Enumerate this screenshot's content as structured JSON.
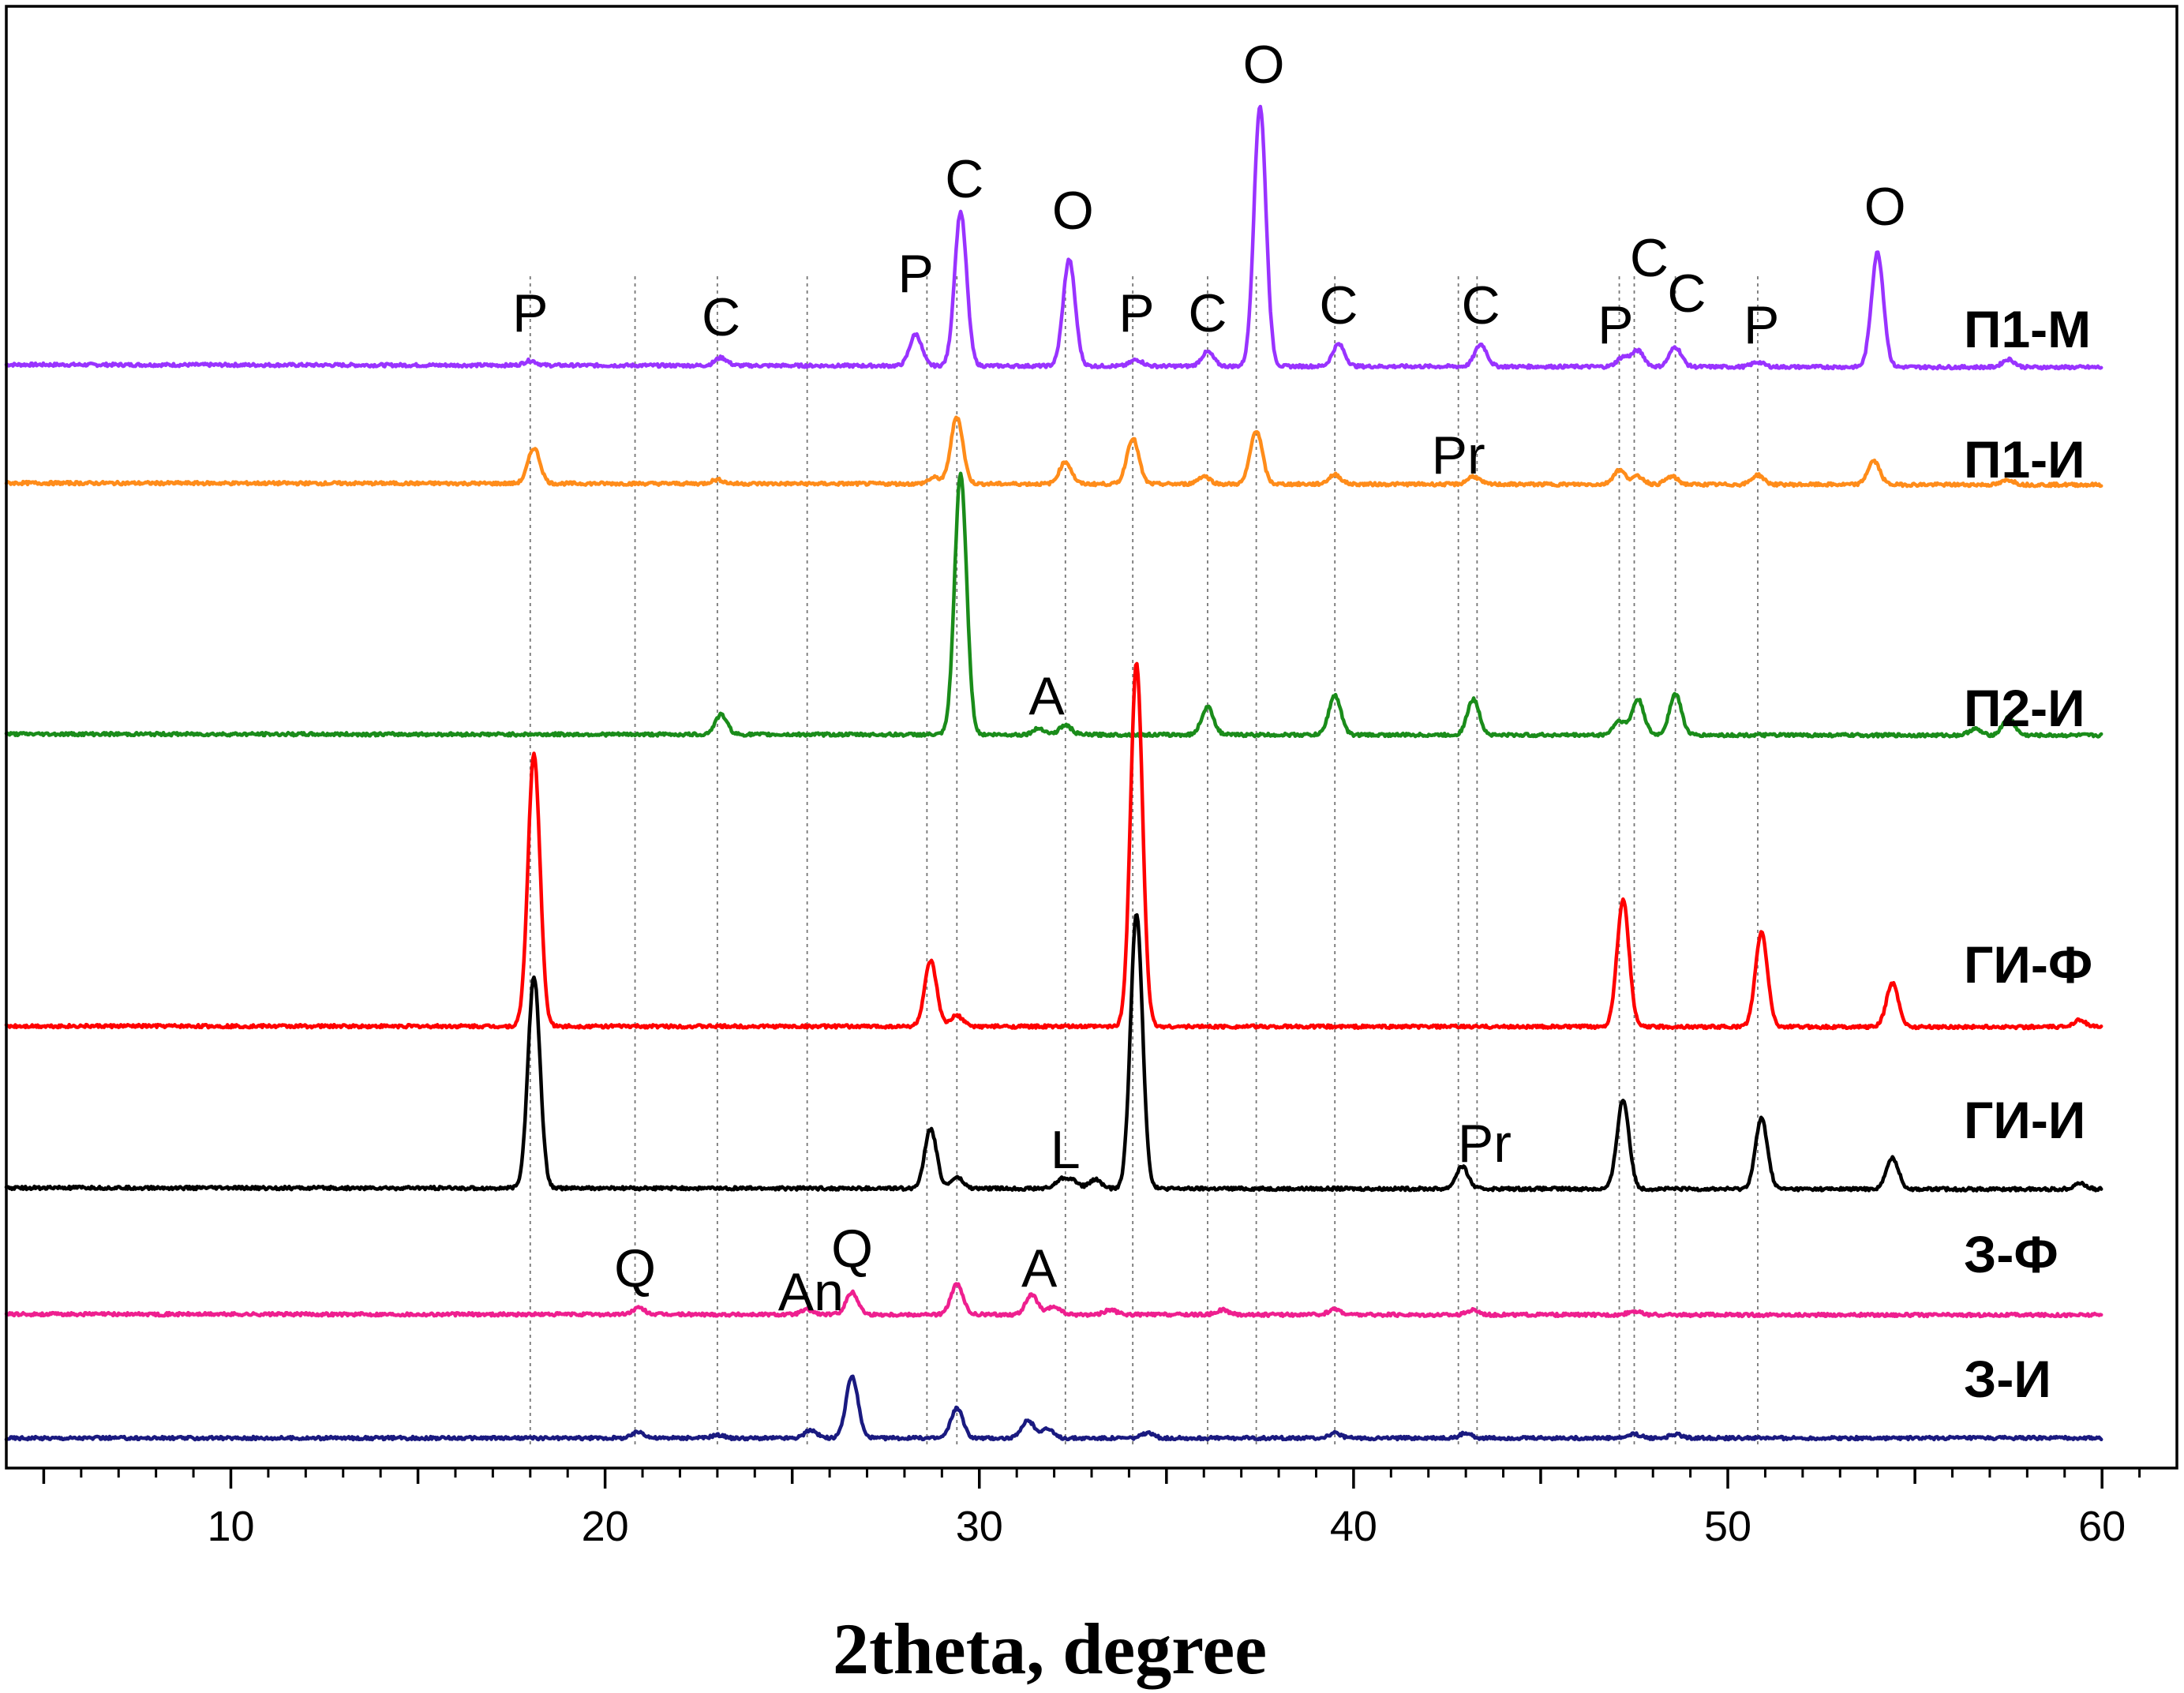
{
  "chart_data": {
    "type": "line",
    "xlabel": "2theta, degree",
    "ylabel": "",
    "xlim": [
      4,
      62
    ],
    "xticks": [
      10,
      20,
      30,
      40,
      50,
      60
    ],
    "grid": false,
    "reference_lines": [
      18.0,
      20.8,
      23.0,
      25.4,
      28.6,
      29.4,
      32.3,
      34.1,
      36.1,
      37.4,
      39.5,
      42.8,
      43.3,
      47.1,
      47.5,
      48.6,
      50.8
    ],
    "series": [
      {
        "name": "П1-М",
        "color": "#9933ff",
        "peaks": [
          [
            18.0,
            6
          ],
          [
            23.1,
            10
          ],
          [
            28.3,
            40
          ],
          [
            29.5,
            195
          ],
          [
            32.4,
            135
          ],
          [
            34.2,
            8
          ],
          [
            36.1,
            18
          ],
          [
            37.5,
            330
          ],
          [
            39.6,
            28
          ],
          [
            43.4,
            28
          ],
          [
            47.2,
            12
          ],
          [
            47.6,
            20
          ],
          [
            48.6,
            25
          ],
          [
            50.8,
            6
          ],
          [
            54.0,
            145
          ],
          [
            57.5,
            10
          ]
        ]
      },
      {
        "name": "П1-И",
        "color": "#ff8c1a",
        "peaks": [
          [
            18.1,
            45
          ],
          [
            23.0,
            5
          ],
          [
            28.8,
            8
          ],
          [
            29.4,
            85
          ],
          [
            32.3,
            28
          ],
          [
            34.1,
            58
          ],
          [
            36.0,
            10
          ],
          [
            37.4,
            68
          ],
          [
            39.5,
            12
          ],
          [
            43.2,
            10
          ],
          [
            47.1,
            18
          ],
          [
            47.6,
            10
          ],
          [
            48.5,
            10
          ],
          [
            50.8,
            12
          ],
          [
            53.9,
            30
          ],
          [
            57.5,
            6
          ]
        ]
      },
      {
        "name": "П2-И",
        "color": "#1a8c1a",
        "peaks": [
          [
            23.1,
            25
          ],
          [
            29.5,
            330
          ],
          [
            31.6,
            8
          ],
          [
            32.3,
            12
          ],
          [
            36.1,
            35
          ],
          [
            39.5,
            50
          ],
          [
            43.2,
            45
          ],
          [
            47.1,
            18
          ],
          [
            47.6,
            45
          ],
          [
            48.6,
            52
          ],
          [
            56.6,
            8
          ],
          [
            57.5,
            22
          ]
        ]
      },
      {
        "name": "ГИ-Ф",
        "color": "#ff0000",
        "peaks": [
          [
            18.1,
            375
          ],
          [
            28.7,
            90
          ],
          [
            29.4,
            15
          ],
          [
            34.2,
            500
          ],
          [
            47.2,
            175
          ],
          [
            50.9,
            130
          ],
          [
            54.4,
            60
          ],
          [
            59.4,
            10
          ]
        ]
      },
      {
        "name": "ГИ-И",
        "color": "#000000",
        "peaks": [
          [
            18.1,
            285
          ],
          [
            28.7,
            80
          ],
          [
            29.4,
            15
          ],
          [
            32.2,
            12
          ],
          [
            32.5,
            10
          ],
          [
            33.1,
            12
          ],
          [
            34.2,
            370
          ],
          [
            42.9,
            30
          ],
          [
            47.2,
            120
          ],
          [
            50.9,
            95
          ],
          [
            54.4,
            42
          ],
          [
            59.4,
            8
          ]
        ]
      },
      {
        "name": "З-Ф",
        "color": "#ee1f8f",
        "peaks": [
          [
            20.9,
            8
          ],
          [
            25.4,
            6
          ],
          [
            26.6,
            28
          ],
          [
            29.4,
            38
          ],
          [
            31.4,
            25
          ],
          [
            32.0,
            10
          ],
          [
            33.5,
            6
          ],
          [
            36.5,
            6
          ],
          [
            39.5,
            7
          ],
          [
            43.2,
            6
          ],
          [
            47.5,
            5
          ]
        ]
      },
      {
        "name": "З-И",
        "color": "#1a1a80",
        "peaks": [
          [
            20.9,
            8
          ],
          [
            23.0,
            4
          ],
          [
            25.5,
            10
          ],
          [
            26.6,
            78
          ],
          [
            29.4,
            38
          ],
          [
            31.3,
            22
          ],
          [
            31.8,
            12
          ],
          [
            34.5,
            6
          ],
          [
            39.5,
            6
          ],
          [
            43.0,
            6
          ],
          [
            47.5,
            5
          ],
          [
            48.6,
            5
          ]
        ]
      }
    ],
    "annotations": [
      {
        "text": "O",
        "x": 37.6
      },
      {
        "text": "C",
        "x": 29.6
      },
      {
        "text": "O",
        "x": 32.5
      },
      {
        "text": "P",
        "x": 28.3
      },
      {
        "text": "O",
        "x": 54.2
      },
      {
        "text": "P",
        "x": 18.0
      },
      {
        "text": "C",
        "x": 23.1
      },
      {
        "text": "P",
        "x": 34.2
      },
      {
        "text": "C",
        "x": 36.1
      },
      {
        "text": "C",
        "x": 39.6
      },
      {
        "text": "C",
        "x": 43.4
      },
      {
        "text": "P",
        "x": 47.0
      },
      {
        "text": "C",
        "x": 47.9
      },
      {
        "text": "C",
        "x": 48.9
      },
      {
        "text": "P",
        "x": 50.9
      },
      {
        "text": "Pr",
        "x": 42.8
      },
      {
        "text": "A",
        "x": 31.8
      },
      {
        "text": "L",
        "x": 32.3
      },
      {
        "text": "Pr",
        "x": 43.5
      },
      {
        "text": "Q",
        "x": 20.8
      },
      {
        "text": "An",
        "x": 25.5
      },
      {
        "text": "Q",
        "x": 26.6
      },
      {
        "text": "A",
        "x": 31.6
      }
    ]
  }
}
